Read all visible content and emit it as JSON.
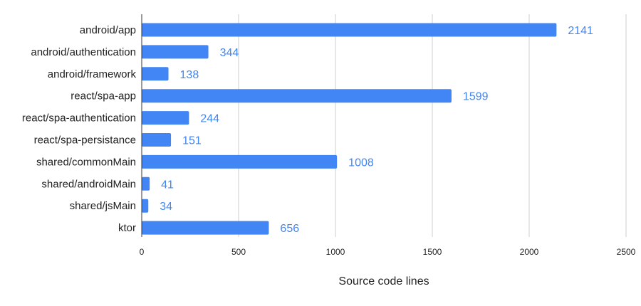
{
  "colors": {
    "bar": "#4285f4",
    "label": "#4285f4",
    "grid": "#cccccc",
    "axis": "#333333",
    "text": "#222222"
  },
  "chart_data": {
    "type": "bar",
    "orientation": "horizontal",
    "categories": [
      "android/app",
      "android/authentication",
      "android/framework",
      "react/spa-app",
      "react/spa-authentication",
      "react/spa-persistance",
      "shared/commonMain",
      "shared/androidMain",
      "shared/jsMain",
      "ktor"
    ],
    "values": [
      2141,
      344,
      138,
      1599,
      244,
      151,
      1008,
      41,
      34,
      656
    ],
    "xlabel": "Source code lines",
    "ylabel": "",
    "xlim": [
      0,
      2500
    ],
    "xticks": [
      0,
      500,
      1000,
      1500,
      2000,
      2500
    ],
    "grid": true,
    "data_labels": true
  }
}
